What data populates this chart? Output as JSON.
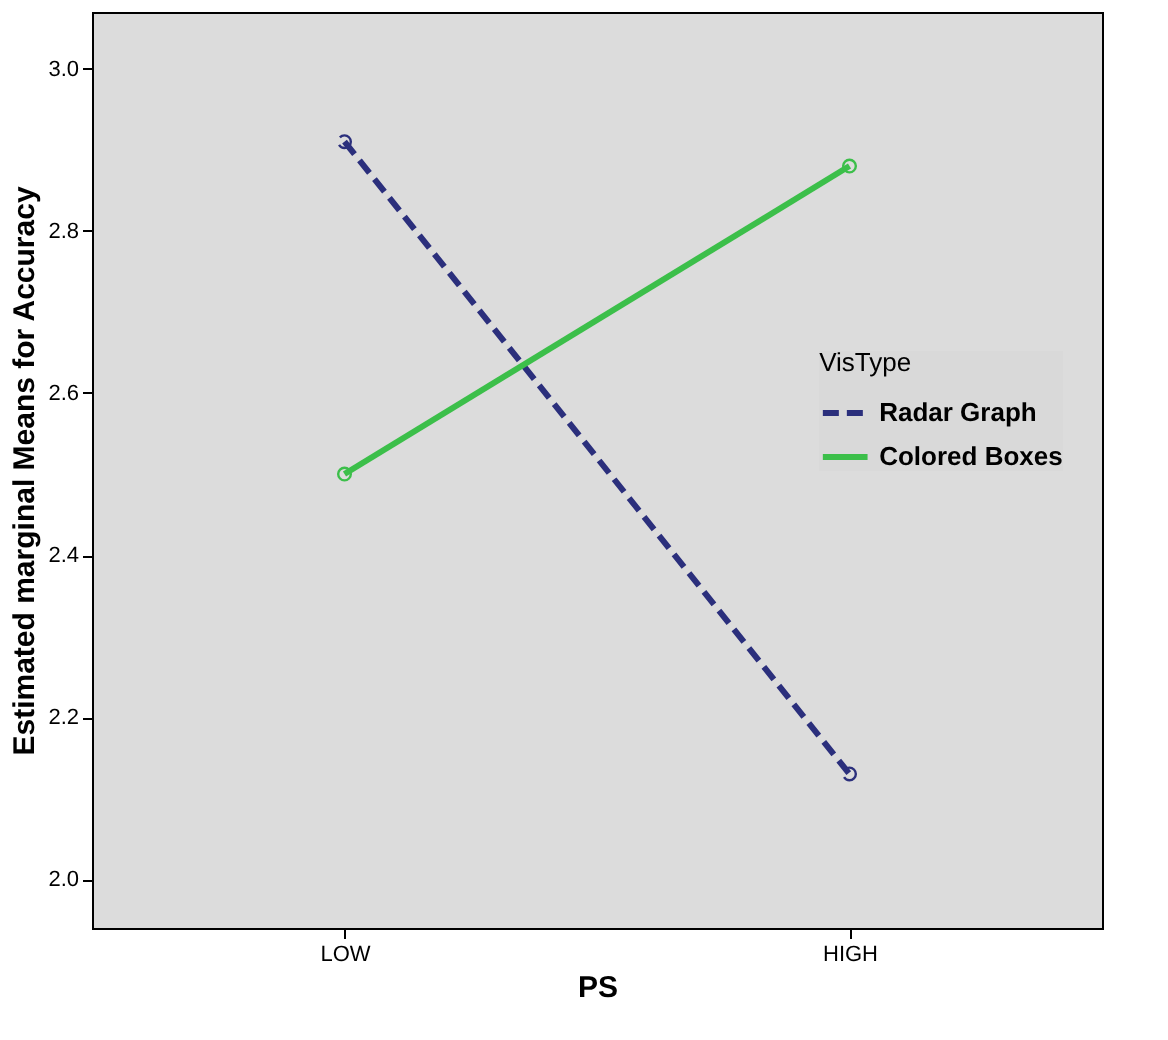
{
  "chart_data": {
    "type": "line",
    "xlabel": "PS",
    "ylabel": "Estimated marginal Means for Accuracy",
    "legend_title": "VisType",
    "categories": [
      "LOW",
      "HIGH"
    ],
    "series": [
      {
        "name": "Radar Graph",
        "color": "#2b2f7c",
        "line_style": "dashed",
        "values": [
          2.91,
          2.13
        ]
      },
      {
        "name": "Colored Boxes",
        "color": "#3cbf4a",
        "line_style": "solid",
        "values": [
          2.5,
          2.88
        ]
      }
    ],
    "ylim": [
      1.94,
      3.07
    ],
    "yticks": [
      {
        "value": 2.0,
        "label": "2.0"
      },
      {
        "value": 2.2,
        "label": "2.2"
      },
      {
        "value": 2.4,
        "label": "2.4"
      },
      {
        "value": 2.6,
        "label": "2.6"
      },
      {
        "value": 2.8,
        "label": "2.8"
      },
      {
        "value": 3.0,
        "label": "3.0"
      }
    ],
    "marker": "circle",
    "legend": "right",
    "grid": false
  }
}
